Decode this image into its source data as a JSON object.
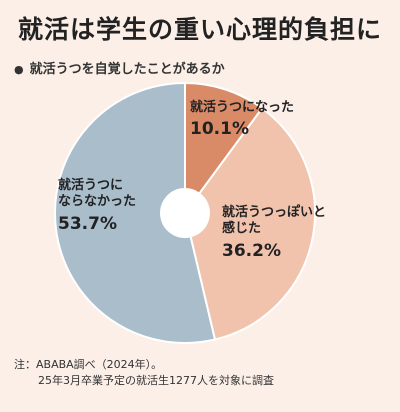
{
  "title": "就活は学生の重い心理的負担に",
  "subtitle": "就活うつを自覚したことがあるか",
  "chart_data": {
    "type": "pie",
    "donut": true,
    "title": "就活は学生の重い心理的負担に",
    "subtitle": "就活うつを自覚したことがあるか",
    "slices": [
      {
        "label": "就活うつになった",
        "value": 10.1,
        "display": "10.1%",
        "color": "#d98a67"
      },
      {
        "label": "就活うつっぽいと感じた",
        "value": 36.2,
        "display": "36.2%",
        "color": "#f1c3ad"
      },
      {
        "label": "就活うつにならなかった",
        "value": 53.7,
        "display": "53.7%",
        "color": "#a9bdcb"
      }
    ]
  },
  "labels": {
    "a_name": "就活うつになった",
    "a_value": "10.1%",
    "b_name_1": "就活うつっぽいと",
    "b_name_2": "感じた",
    "b_value": "36.2%",
    "c_name_1": "就活うつに",
    "c_name_2": "ならなかった",
    "c_value": "53.7%"
  },
  "note": {
    "line1": "注：ABABA調べ（2024年）。",
    "line2": "25年3月卒業予定の就活生1277人を対象に調査"
  }
}
